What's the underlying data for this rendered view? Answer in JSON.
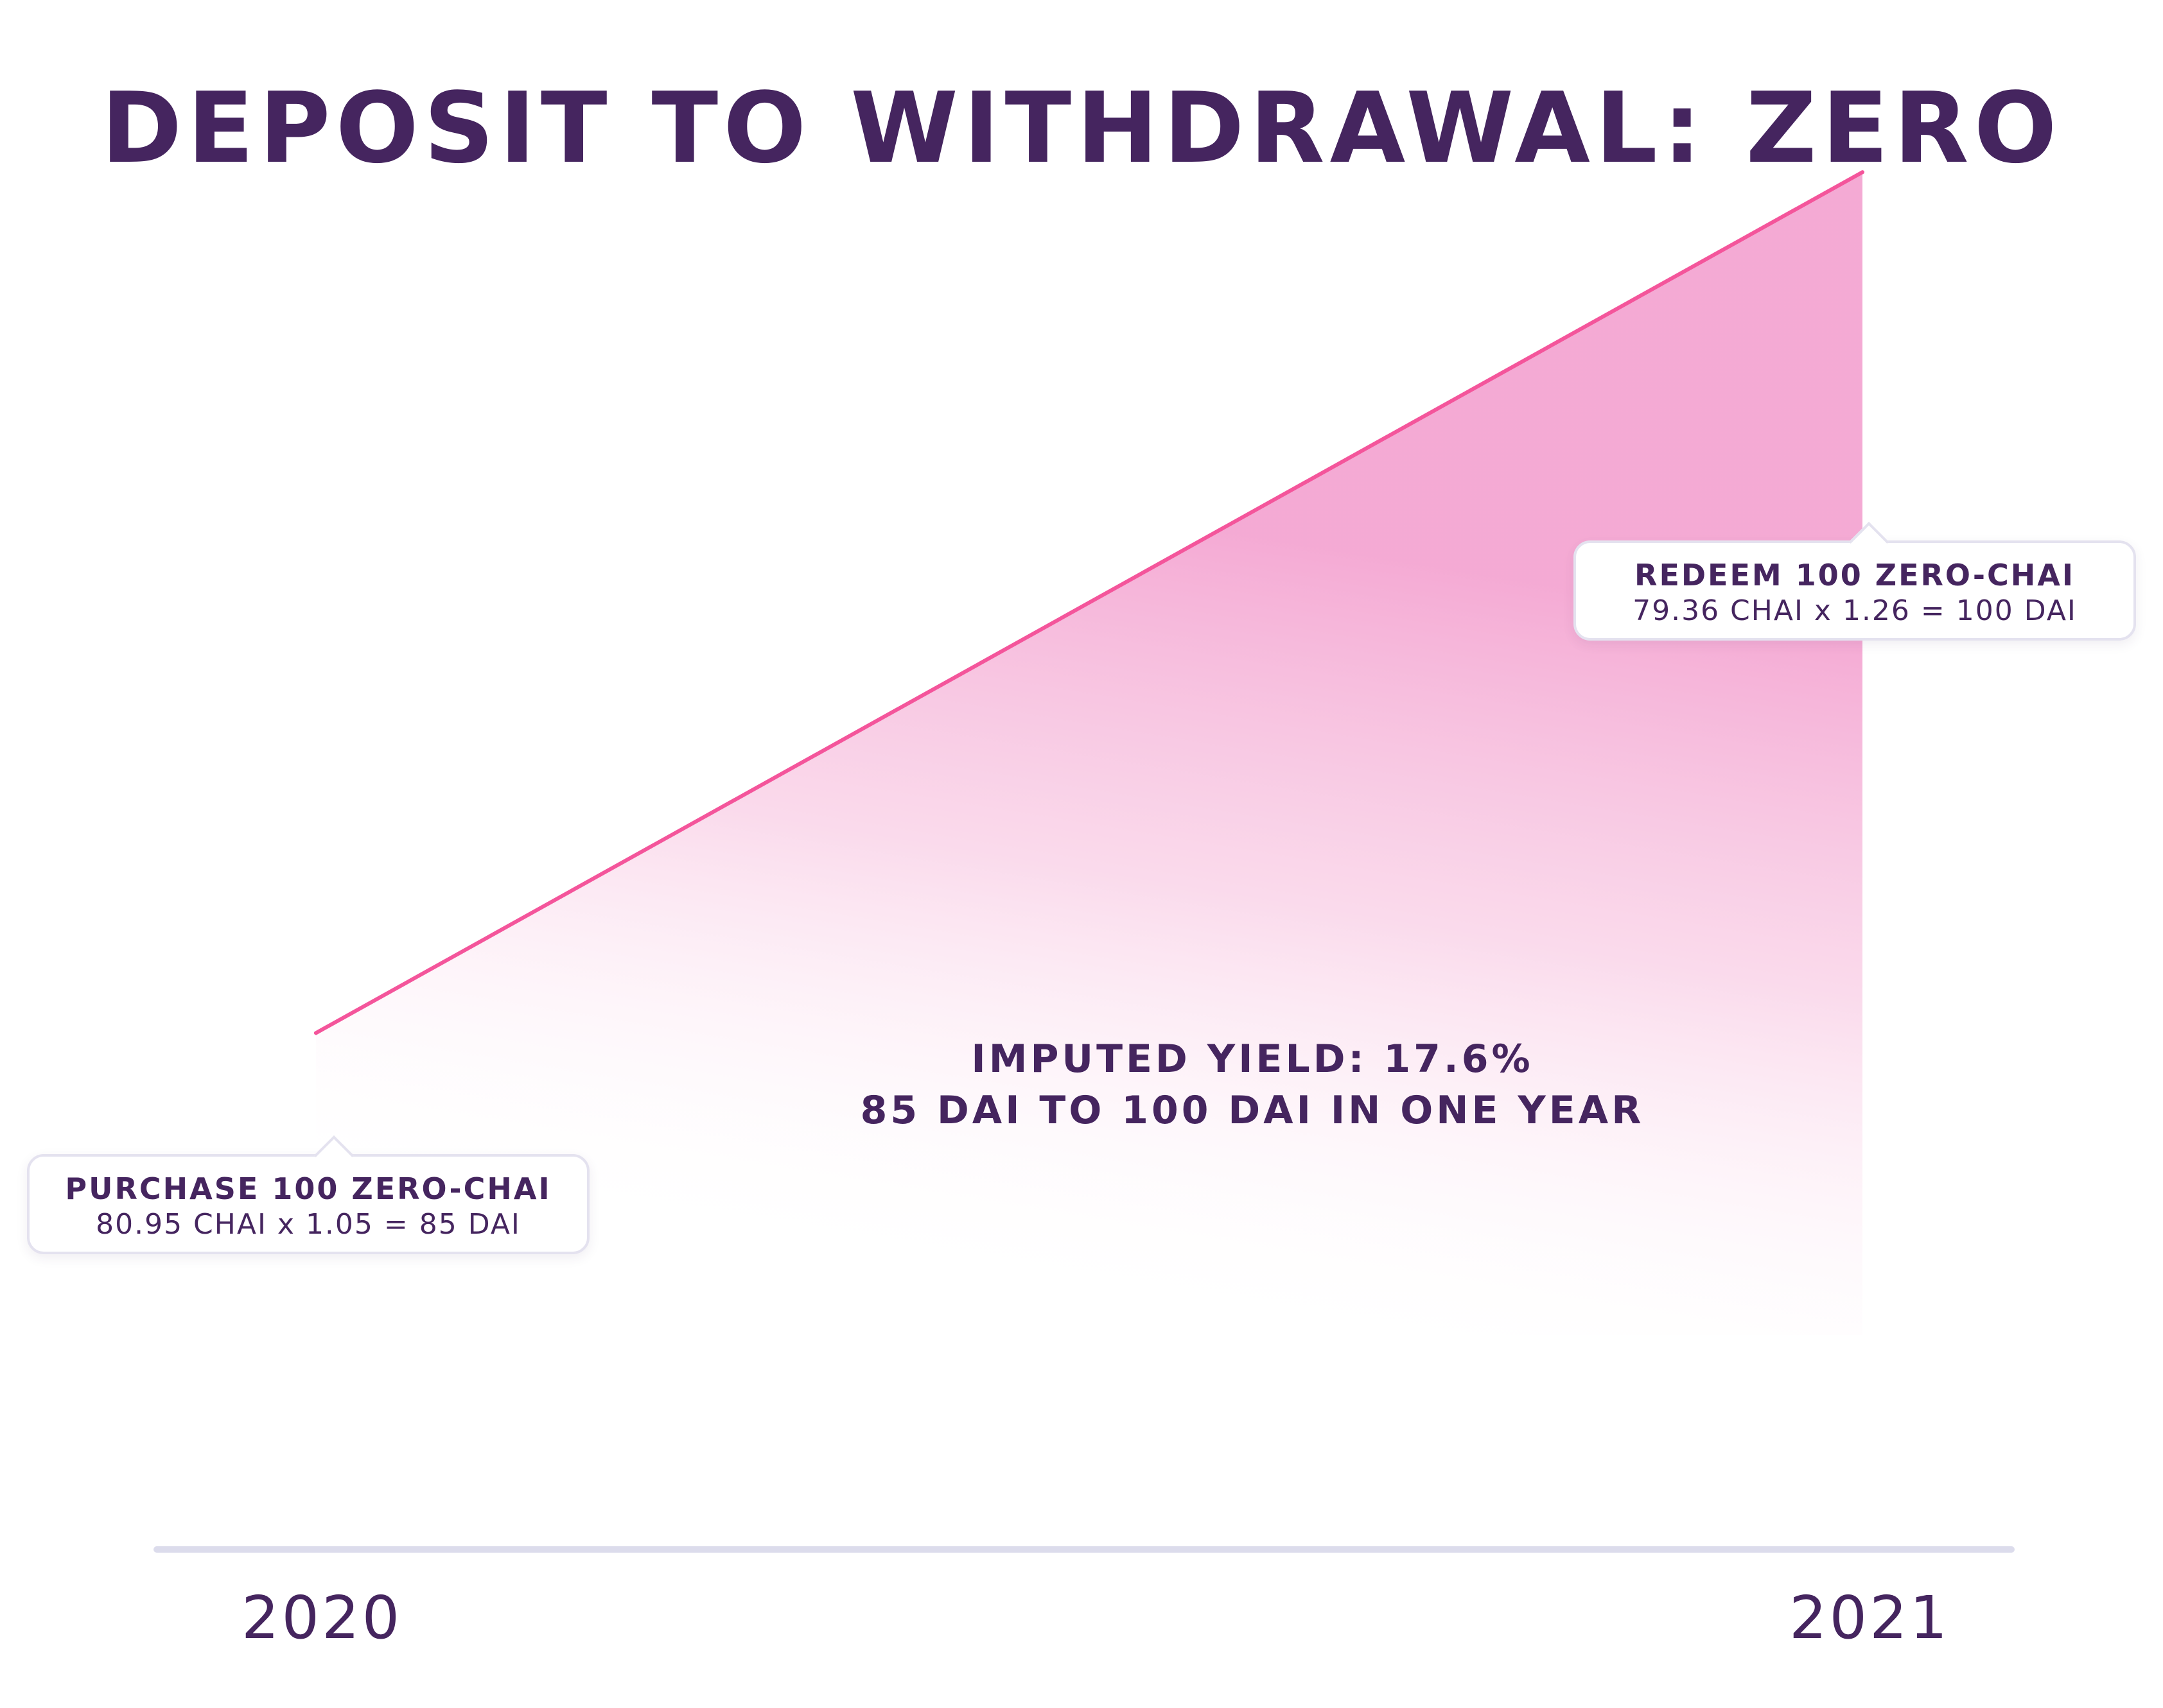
{
  "chart_data": {
    "type": "area",
    "title": "DEPOSIT TO WITHDRAWAL: ZERO",
    "x": [
      "2020",
      "2021"
    ],
    "series": [
      {
        "values": [
          85,
          100
        ]
      }
    ],
    "xlabel": "",
    "ylabel": "",
    "ylim": [
      76,
      103
    ],
    "grid": false,
    "colors": {
      "line": "#f4559b",
      "fill": "#f4a6d2",
      "axis": "#dcdcec",
      "text": "#45255f"
    },
    "annotations": {
      "start": {
        "heading": "PURCHASE 100 ZERO-CHAI",
        "detail": "80.95 CHAI x 1.05 = 85 DAI"
      },
      "end": {
        "heading": "REDEEM 100 ZERO-CHAI",
        "detail": "79.36 CHAI x 1.26 = 100 DAI"
      },
      "yield": {
        "line1": "IMPUTED YIELD: 17.6%",
        "line2": "85 DAI TO 100 DAI IN ONE YEAR"
      }
    }
  }
}
